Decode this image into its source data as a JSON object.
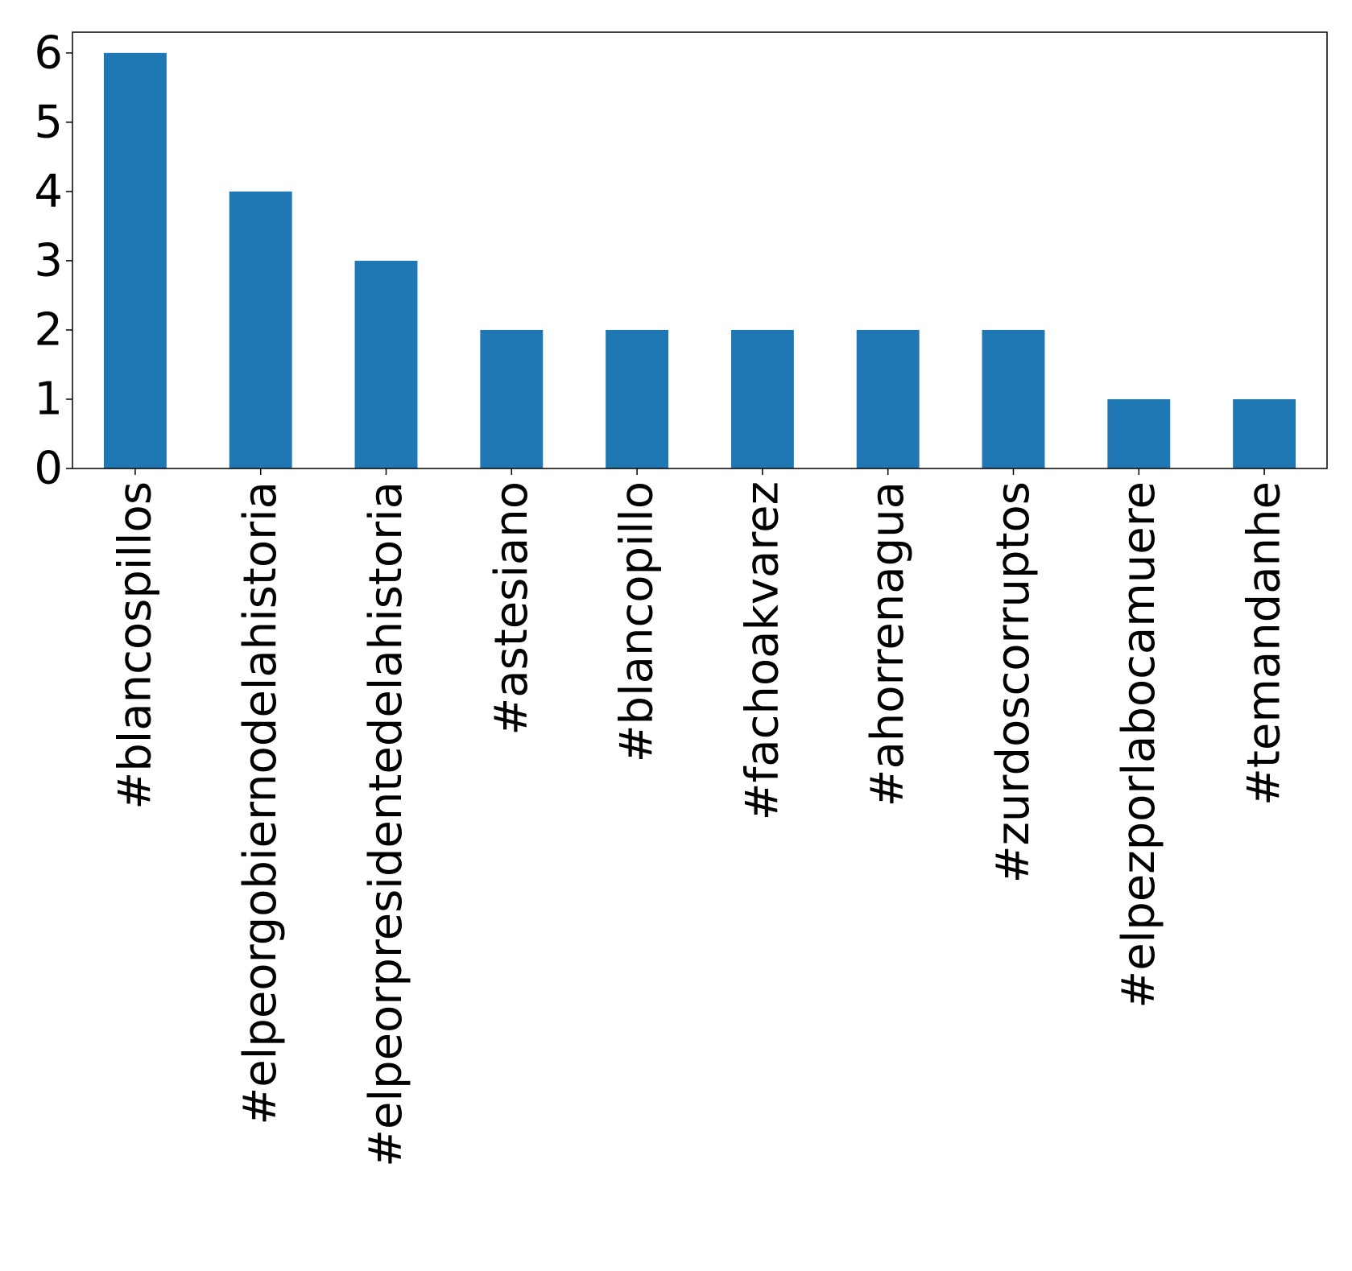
{
  "chart_data": {
    "type": "bar",
    "title": "",
    "xlabel": "",
    "ylabel": "",
    "categories": [
      "#blancospillos",
      "#elpeorgobiernodelahistoria",
      "#elpeorpresidentedelahistoria",
      "#astesiano",
      "#blancopillo",
      "#fachoakvarez",
      "#ahorrenagua",
      "#zurdoscorruptos",
      "#elpezporlabocamuere",
      "#temandanhe"
    ],
    "values": [
      6,
      4,
      3,
      2,
      2,
      2,
      2,
      2,
      1,
      1
    ],
    "ylim": [
      0,
      6.3
    ],
    "yticks": [
      0,
      1,
      2,
      3,
      4,
      5,
      6
    ],
    "grid": false,
    "legend": "none",
    "colors": {
      "bar": "#1f77b4",
      "axis": "#000000",
      "background": "#ffffff"
    }
  }
}
